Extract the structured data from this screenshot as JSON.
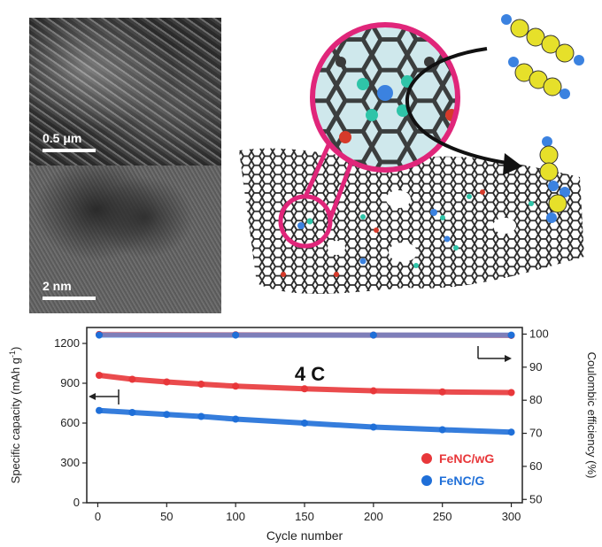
{
  "micrographs": {
    "sem_scale_label": "0.5 μm",
    "tem_scale_label": "2 nm"
  },
  "chart_data": {
    "type": "scatter",
    "annotation": "4 C",
    "xlabel": "Cycle number",
    "ylabel_left": "Specific capacity (mAh g",
    "ylabel_left_sup": "-1",
    "ylabel_left_tail": ")",
    "ylabel_right": "Coulombic efficiency (%)",
    "xlim": [
      -8,
      308
    ],
    "ylim_left": [
      0,
      1320
    ],
    "ylim_right": [
      49,
      102
    ],
    "xticks": [
      "0",
      "50",
      "100",
      "150",
      "200",
      "250",
      "300"
    ],
    "yticks_left": [
      "0",
      "300",
      "600",
      "900",
      "1200"
    ],
    "yticks_right": [
      "50",
      "60",
      "70",
      "80",
      "90",
      "100"
    ],
    "series": [
      {
        "name": "FeNC/wG",
        "axis": "left",
        "color": "#e8373a",
        "x": [
          1,
          25,
          50,
          75,
          100,
          150,
          200,
          250,
          300
        ],
        "y": [
          960,
          930,
          910,
          893,
          878,
          858,
          843,
          835,
          830
        ]
      },
      {
        "name": "FeNC/G",
        "axis": "left",
        "color": "#1f6fd8",
        "x": [
          1,
          25,
          50,
          75,
          100,
          150,
          200,
          250,
          300
        ],
        "y": [
          695,
          680,
          665,
          650,
          630,
          600,
          570,
          550,
          532
        ]
      },
      {
        "name": "",
        "axis": "right",
        "color": "#e8373a",
        "x": [
          1,
          100,
          200,
          300
        ],
        "y": [
          99.9,
          99.8,
          99.7,
          99.6
        ]
      },
      {
        "name": "",
        "axis": "right",
        "color": "#1f6fd8",
        "x": [
          1,
          100,
          200,
          300
        ],
        "y": [
          99.7,
          99.7,
          99.7,
          99.7
        ]
      }
    ],
    "legend_placement": "bottom-right",
    "grid": false
  },
  "colors": {
    "red": "#e8373a",
    "blue": "#1f6fd8",
    "magenta": "#e0267a",
    "yellow": "#e6e02a",
    "carbon": "#2b2b2b",
    "nitrogen": "#2fc4a8",
    "iron": "#3b82e0",
    "oxygen": "#d63a2a"
  }
}
